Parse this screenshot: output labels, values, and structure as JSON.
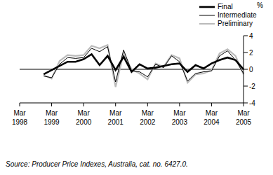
{
  "chart_data": {
    "type": "line",
    "y_label": "%",
    "source": "Source: Producer Price Indexes, Australia, cat. no. 6427.0.",
    "legend": "upper right",
    "categories": [
      "Mar 1998",
      null,
      null,
      null,
      "Mar 1999",
      null,
      null,
      null,
      "Mar 2000",
      null,
      null,
      null,
      "Mar 2001",
      null,
      null,
      null,
      "Mar 2002",
      null,
      null,
      null,
      "Mar 2003",
      null,
      null,
      null,
      "Mar 2004",
      null,
      null,
      null,
      "Mar 2005"
    ],
    "ylim": [
      -4,
      4
    ],
    "yticks": [
      -4,
      -2,
      0,
      2,
      4
    ],
    "series": [
      {
        "name": "Final",
        "color": "#000000",
        "values": [
          null,
          null,
          null,
          -0.6,
          -0.1,
          0.4,
          0.9,
          0.9,
          1.2,
          1.8,
          0.5,
          1.6,
          -0.1,
          1.5,
          -0.3,
          0.6,
          0.1,
          0.2,
          0.4,
          0.6,
          0.7,
          -0.3,
          0.5,
          0.1,
          0.7,
          1.1,
          1.4,
          1.1,
          0.0
        ]
      },
      {
        "name": "Intermediate",
        "color": "#000000",
        "values": [
          null,
          null,
          null,
          -0.8,
          -1.0,
          0.6,
          1.4,
          1.3,
          1.4,
          2.5,
          2.1,
          2.7,
          -1.5,
          2.3,
          -0.2,
          -0.3,
          -0.9,
          0.6,
          0.2,
          1.6,
          0.9,
          -1.4,
          -0.5,
          -0.3,
          -0.2,
          1.6,
          2.2,
          1.1,
          -0.5
        ]
      },
      {
        "name": "Preliminary",
        "color": "#bbbbbb",
        "values": [
          null,
          null,
          null,
          -0.7,
          -1.1,
          1.0,
          1.7,
          1.6,
          1.7,
          2.8,
          2.5,
          2.9,
          -2.1,
          1.9,
          0.0,
          -0.5,
          -1.2,
          0.7,
          0.3,
          1.7,
          1.3,
          -1.6,
          -0.6,
          -0.5,
          -0.1,
          1.9,
          2.4,
          1.6,
          -0.6
        ]
      }
    ]
  }
}
